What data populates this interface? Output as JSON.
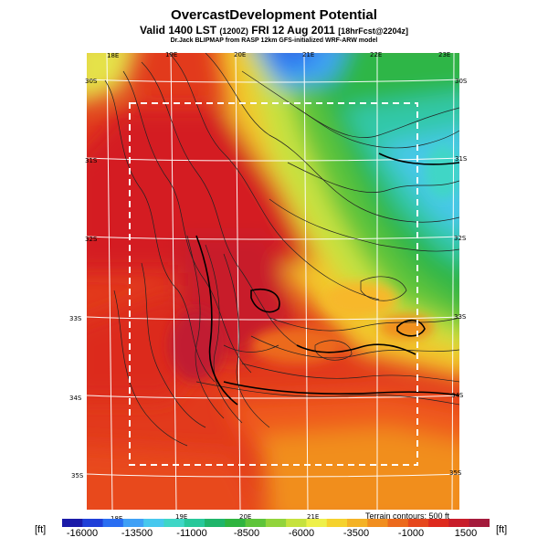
{
  "header": {
    "title": "OvercastDevelopment Potential",
    "subtitle_main": "Valid 1400 LST",
    "subtitle_small_1": "(1200Z)",
    "subtitle_date": "FRI 12 Aug 2011",
    "subtitle_small_2": "[18hrFcst@2204z]",
    "credit": "Dr.Jack BLIPMAP from RASP 12km GFS-initialized WRF-ARW model"
  },
  "map": {
    "lon_labels_top": [
      "18E",
      "19E",
      "20E",
      "21E",
      "22E",
      "23E"
    ],
    "lon_labels_bottom": [
      "18E",
      "19E",
      "20E",
      "21E"
    ],
    "lat_labels_left": [
      "30S",
      "31S",
      "32S",
      "33S",
      "34S",
      "35S"
    ],
    "lat_labels_right": [
      "30S",
      "31S",
      "32S",
      "33S",
      "34S",
      "35S"
    ],
    "contour_note": "Terrain contours: 500 ft"
  },
  "colorbar": {
    "unit_left": "[ft]",
    "unit_right": "[ft]",
    "labels": [
      "-16000",
      "-13500",
      "-11000",
      "-8500",
      "-6000",
      "-3500",
      "-1000",
      "1500"
    ],
    "colors": [
      "#1a1aa8",
      "#1f3fd8",
      "#2a6ef2",
      "#3fa0f6",
      "#47c8ee",
      "#3fd6c6",
      "#27c89a",
      "#1fb56a",
      "#2fb43f",
      "#5ec43a",
      "#92d43c",
      "#c6e23e",
      "#eef04a",
      "#f5d22e",
      "#f4b225",
      "#f18e1f",
      "#ec6a1d",
      "#e6471d",
      "#de2a1e",
      "#c81d2a",
      "#a41b3c"
    ]
  }
}
